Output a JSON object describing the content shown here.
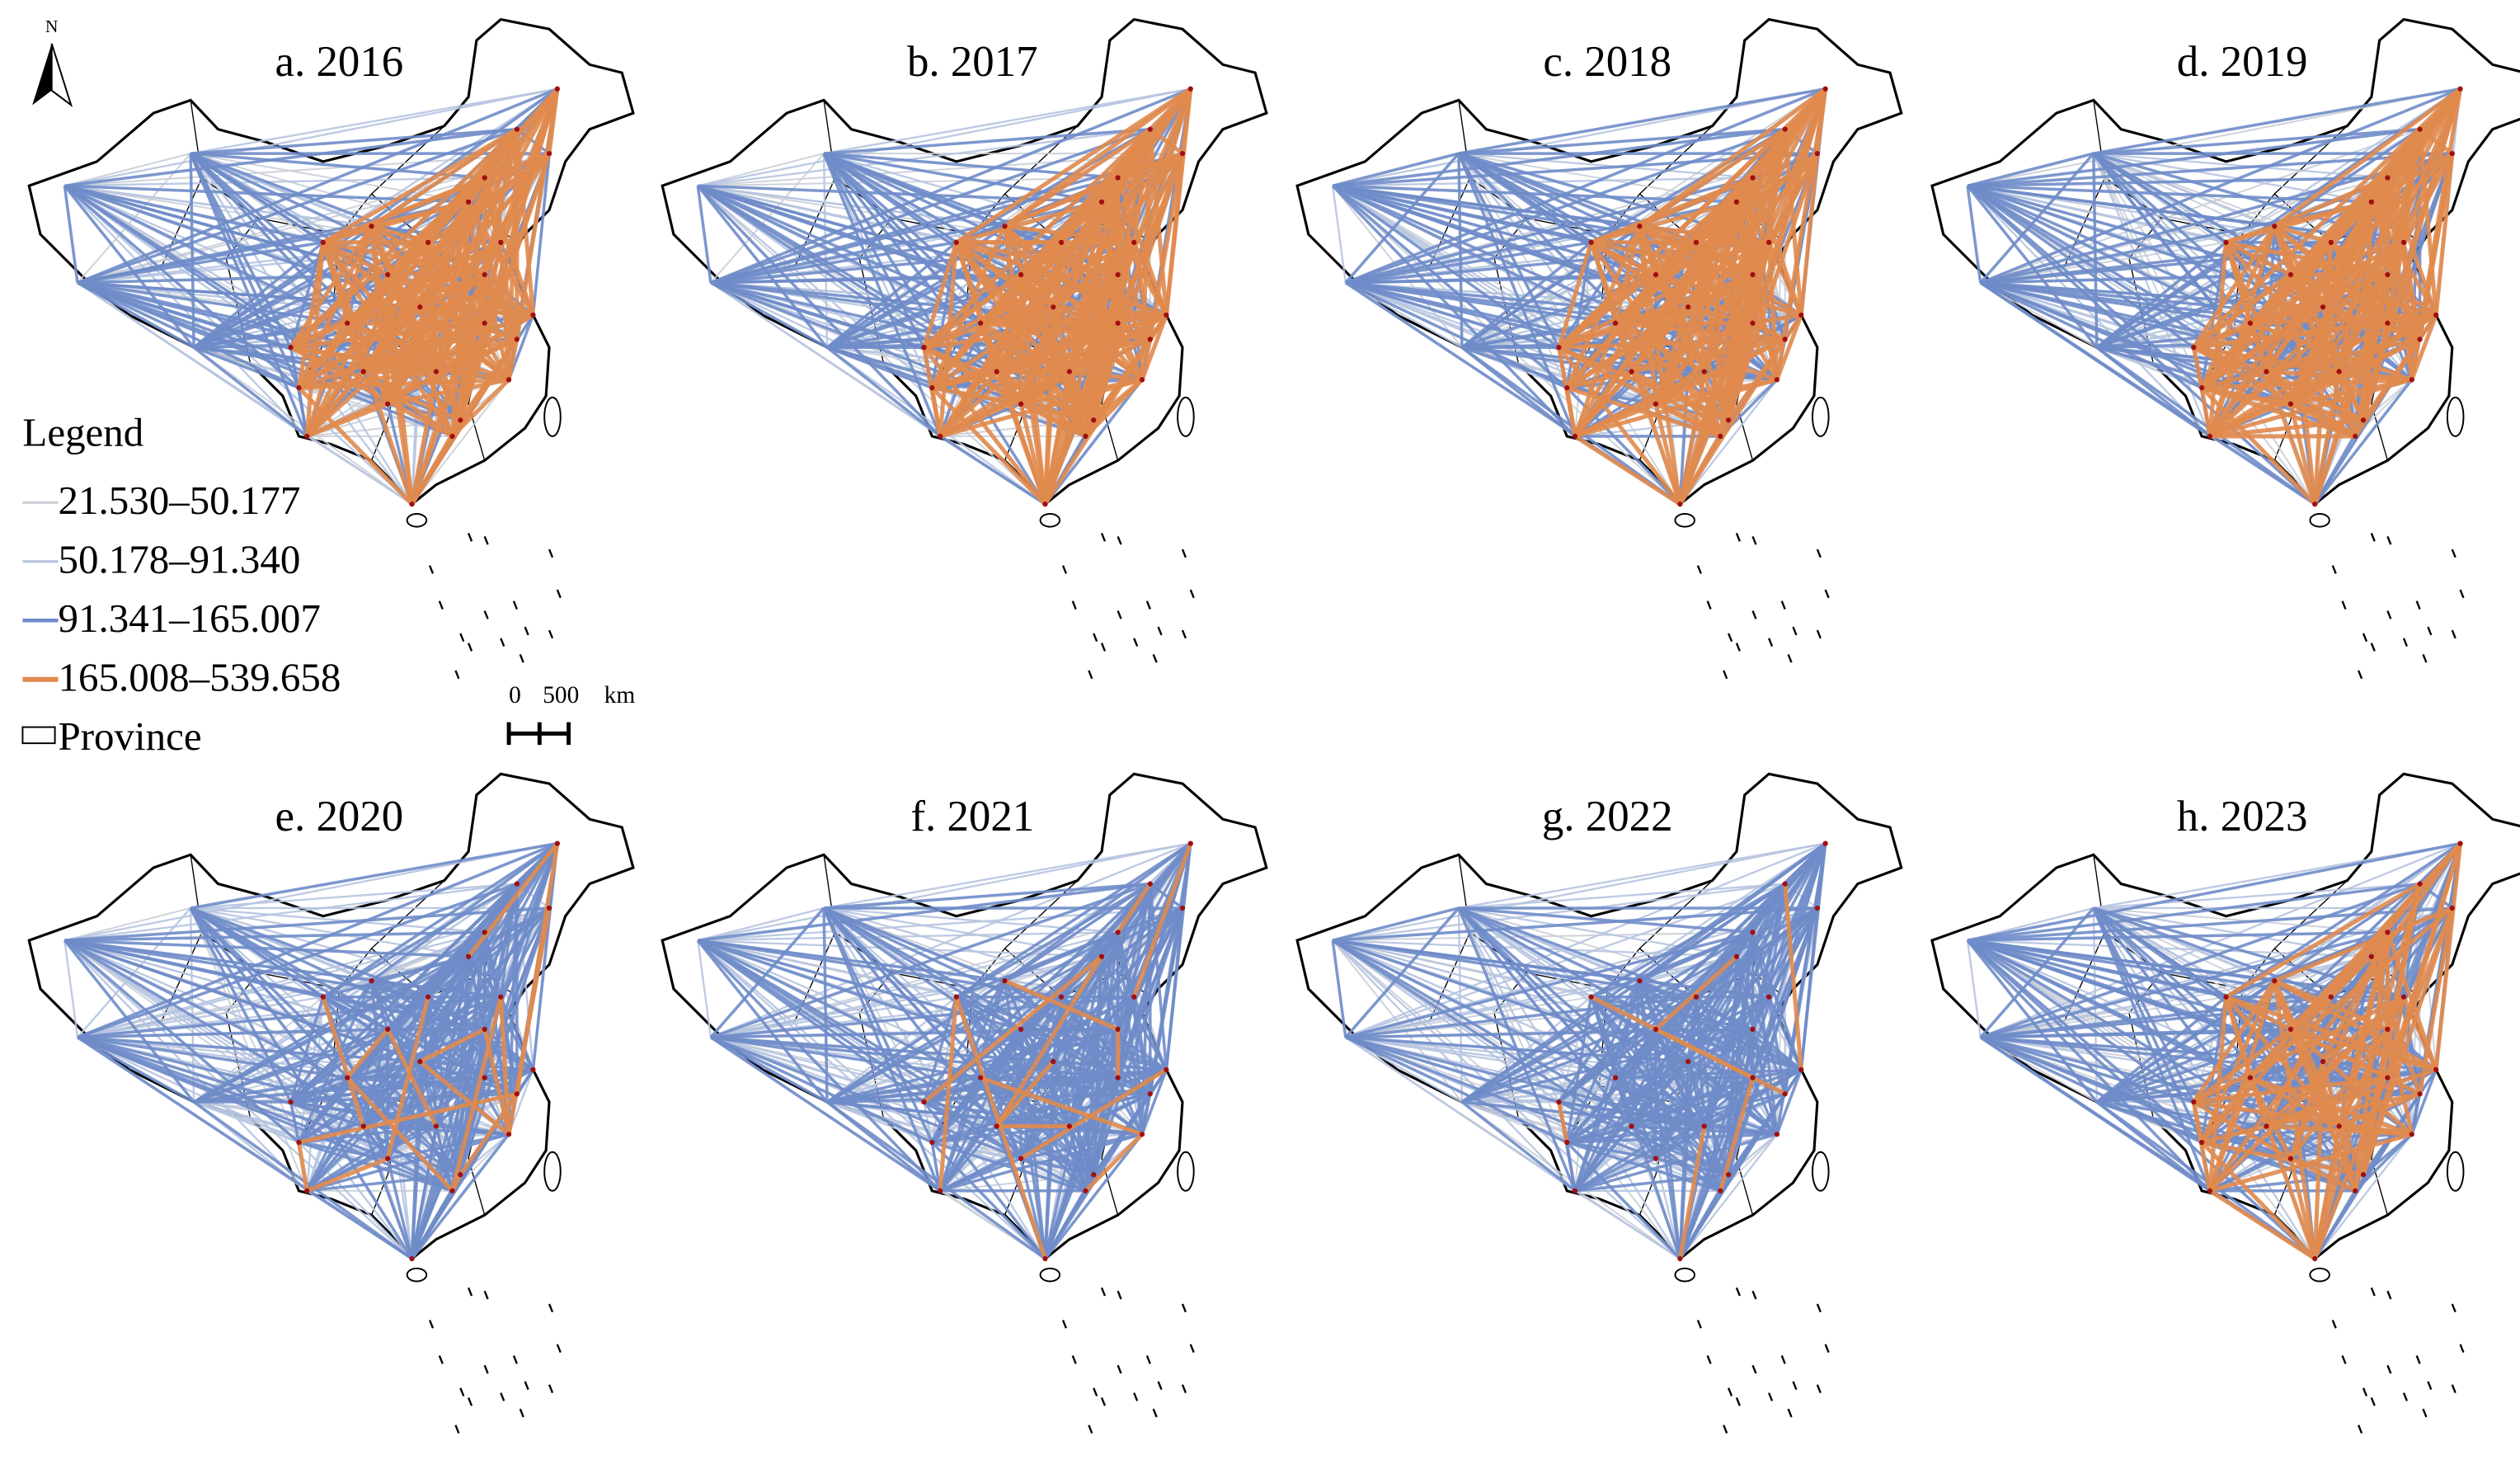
{
  "panels": [
    {
      "title": "a. 2016"
    },
    {
      "title": "b. 2017"
    },
    {
      "title": "c. 2018"
    },
    {
      "title": "d. 2019"
    },
    {
      "title": "e. 2020"
    },
    {
      "title": "f. 2021"
    },
    {
      "title": "g. 2022"
    },
    {
      "title": "h. 2023"
    }
  ],
  "north_arrow": {
    "label": "N"
  },
  "legend": {
    "title": "Legend",
    "items": [
      {
        "label": "21.530–50.177",
        "color": "#c9cdd6"
      },
      {
        "label": "50.178–91.340",
        "color": "#b6c4e0"
      },
      {
        "label": "91.341–165.007",
        "color": "#6f8cc9"
      },
      {
        "label": "165.008–539.658",
        "color": "#e0894e"
      },
      {
        "label": "Province"
      }
    ]
  },
  "scale_bar": {
    "labels": [
      "0",
      "500",
      "km"
    ]
  }
}
